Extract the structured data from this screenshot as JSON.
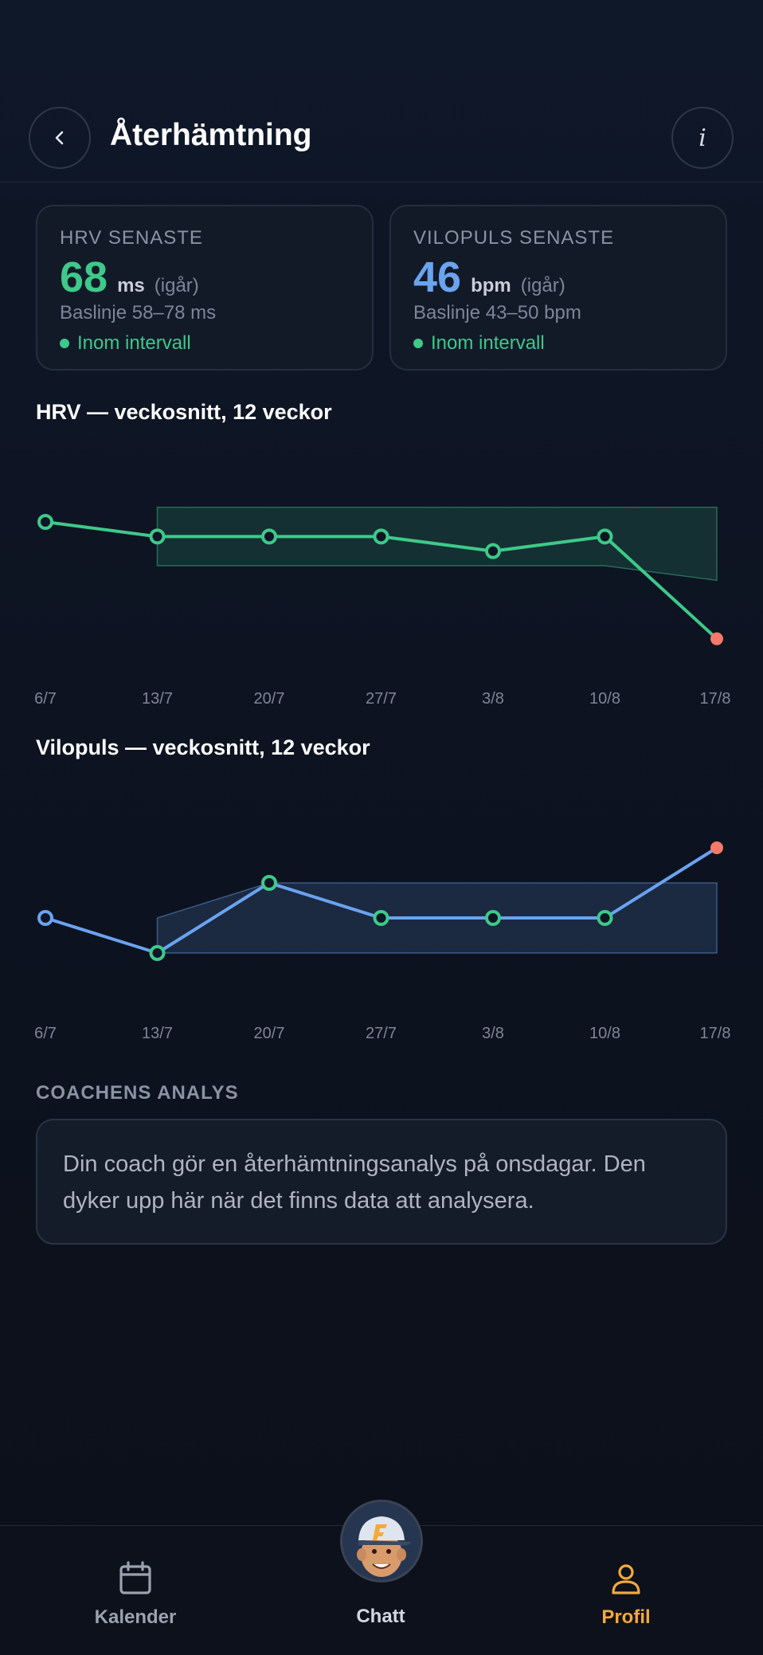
{
  "header": {
    "title": "Återhämtning",
    "info_label": "i"
  },
  "cards": {
    "hrv": {
      "label": "HRV SENASTE",
      "value": "68",
      "unit": "ms",
      "when": "(igår)",
      "baseline": "Baslinje 58–78 ms",
      "status": "Inom intervall",
      "color": "#3ec98a"
    },
    "rhr": {
      "label": "VILOPULS SENASTE",
      "value": "46",
      "unit": "bpm",
      "when": "(igår)",
      "baseline": "Baslinje 43–50 bpm",
      "status": "Inom intervall",
      "color": "#6aa3f0"
    }
  },
  "chart_data": [
    {
      "type": "line",
      "title": "HRV — veckosnitt, 12 veckor",
      "x": [
        "6/7",
        "13/7",
        "20/7",
        "27/7",
        "3/8",
        "10/8",
        "17/8"
      ],
      "series": [
        {
          "values": [
            73,
            72,
            72,
            72,
            71,
            72,
            65
          ]
        }
      ],
      "band": {
        "from_index": 1,
        "upper": [
          74,
          74,
          74,
          74,
          74,
          74
        ],
        "lower": [
          70,
          70,
          70,
          70,
          70,
          69
        ]
      },
      "ylim": [
        64,
        76
      ],
      "line_color": "#3ec98a",
      "highlight_color": "#f37a6a",
      "grid": false
    },
    {
      "type": "line",
      "title": "Vilopuls — veckosnitt, 12 veckor",
      "x": [
        "6/7",
        "13/7",
        "20/7",
        "27/7",
        "3/8",
        "10/8",
        "17/8"
      ],
      "series": [
        {
          "values": [
            47,
            46,
            48,
            47,
            47,
            47,
            49
          ]
        }
      ],
      "band": {
        "from_index": 1,
        "upper": [
          47,
          48,
          48,
          48,
          48,
          48
        ],
        "lower": [
          46,
          46,
          46,
          46,
          46,
          46
        ]
      },
      "ylim": [
        45,
        50
      ],
      "line_color": "#6aa3f0",
      "highlight_color": "#f37a6a",
      "grid": false
    }
  ],
  "coach": {
    "label": "COACHENS ANALYS",
    "text": "Din coach gör en återhämtningsanalys på onsdagar. Den dyker upp här när det finns data att analysera."
  },
  "tabs": [
    {
      "label": "Kalender",
      "icon": "calendar-icon"
    },
    {
      "label": "Chatt",
      "icon": "coach-avatar"
    },
    {
      "label": "Profil",
      "icon": "person-icon",
      "active": true,
      "color": "#f4a93a"
    }
  ]
}
